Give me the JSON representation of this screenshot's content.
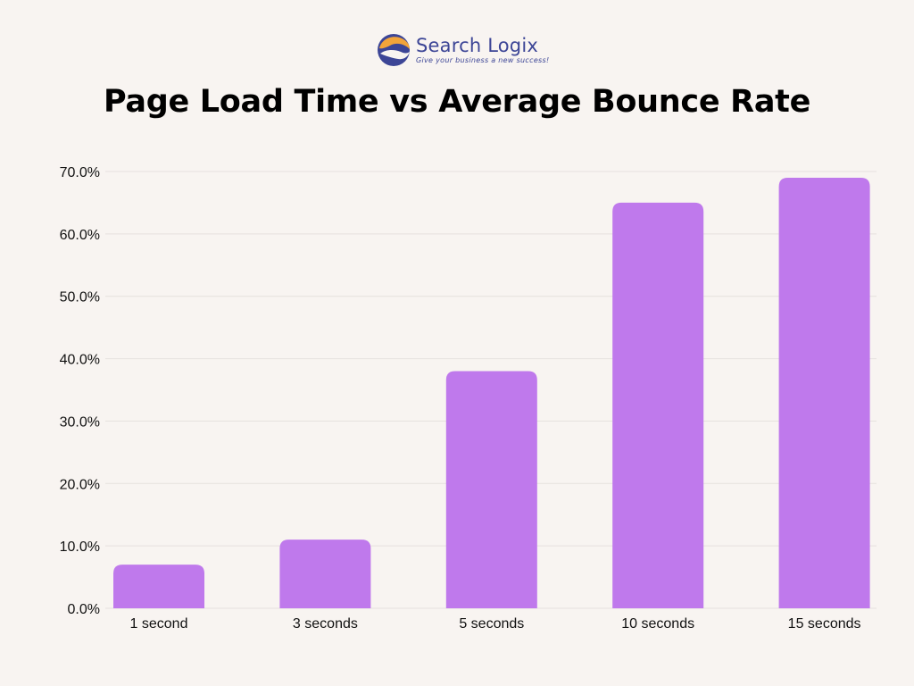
{
  "brand": {
    "name": "Search Logix",
    "tagline": "Give your business a new success!",
    "colors": {
      "orange": "#f2a43a",
      "navy": "#3c4596"
    }
  },
  "chart_data": {
    "type": "bar",
    "title": "Page Load Time vs Average Bounce Rate",
    "xlabel": "",
    "ylabel": "",
    "categories": [
      "1 second",
      "3 seconds",
      "5 seconds",
      "10 seconds",
      "15 seconds"
    ],
    "values": [
      7,
      11,
      38,
      65,
      69
    ],
    "ylim": [
      0,
      70
    ],
    "yticks": [
      0,
      10,
      20,
      30,
      40,
      50,
      60,
      70
    ],
    "ytick_labels": [
      "0.0%",
      "10.0%",
      "20.0%",
      "30.0%",
      "40.0%",
      "50.0%",
      "60.0%",
      "70.0%"
    ],
    "grid": true,
    "legend": "none",
    "bar_color": "#bf79ec",
    "grid_color": "#e6e1de"
  }
}
